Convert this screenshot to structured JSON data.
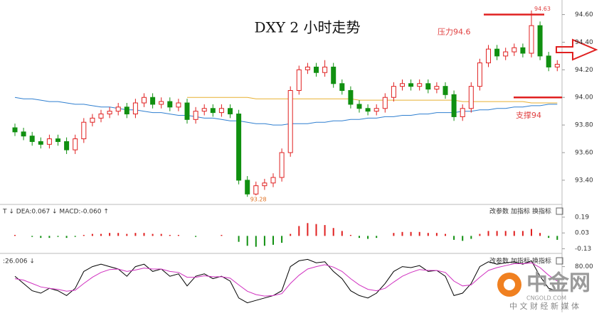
{
  "chart_data": [
    {
      "type": "candlestick",
      "title": "DXY 2 小时走势",
      "open": [
        93.78,
        93.75,
        93.72,
        93.68,
        93.66,
        93.7,
        93.68,
        93.62,
        93.7,
        93.82,
        93.85,
        93.88,
        93.9,
        93.93,
        93.88,
        93.96,
        94.0,
        93.95,
        93.97,
        93.93,
        93.96,
        93.84,
        93.9,
        93.92,
        93.89,
        93.92,
        93.88,
        93.4,
        93.3,
        93.36,
        93.38,
        93.42,
        93.6,
        94.05,
        94.2,
        94.22,
        94.18,
        94.22,
        94.1,
        94.05,
        93.95,
        93.92,
        93.9,
        93.92,
        94.0,
        94.08,
        94.1,
        94.08,
        94.1,
        94.06,
        94.08,
        94.02,
        93.86,
        93.92,
        94.08,
        94.25,
        94.35,
        94.3,
        94.33,
        94.36,
        94.32,
        94.52,
        94.3,
        94.22
      ],
      "high": [
        93.81,
        93.78,
        93.75,
        93.71,
        93.73,
        93.73,
        93.71,
        93.73,
        93.85,
        93.88,
        93.91,
        93.93,
        93.96,
        93.96,
        93.99,
        94.03,
        94.03,
        94.0,
        94.0,
        93.99,
        93.99,
        93.93,
        93.95,
        93.95,
        93.95,
        93.95,
        93.91,
        93.43,
        93.39,
        93.41,
        93.45,
        93.63,
        94.08,
        94.23,
        94.25,
        94.25,
        94.27,
        94.25,
        94.13,
        94.08,
        93.98,
        93.95,
        93.95,
        94.03,
        94.11,
        94.13,
        94.13,
        94.13,
        94.13,
        94.11,
        94.11,
        94.05,
        93.95,
        94.11,
        94.28,
        94.38,
        94.38,
        94.36,
        94.39,
        94.39,
        94.63,
        94.55,
        94.33,
        94.27
      ],
      "low": [
        93.72,
        93.69,
        93.65,
        93.63,
        93.63,
        93.65,
        93.59,
        93.59,
        93.67,
        93.79,
        93.82,
        93.85,
        93.87,
        93.85,
        93.85,
        93.93,
        93.92,
        93.92,
        93.9,
        93.9,
        93.81,
        93.81,
        93.87,
        93.86,
        93.86,
        93.85,
        93.37,
        93.28,
        93.29,
        93.33,
        93.35,
        93.39,
        93.57,
        94.02,
        94.17,
        94.15,
        94.15,
        94.07,
        94.02,
        93.92,
        93.89,
        93.87,
        93.87,
        93.89,
        93.97,
        94.05,
        94.05,
        94.05,
        94.03,
        94.03,
        93.99,
        93.83,
        93.83,
        93.89,
        94.05,
        94.22,
        94.27,
        94.27,
        94.3,
        94.29,
        94.29,
        94.27,
        94.19,
        94.19
      ],
      "close": [
        93.75,
        93.72,
        93.68,
        93.66,
        93.7,
        93.68,
        93.62,
        93.7,
        93.82,
        93.85,
        93.88,
        93.9,
        93.93,
        93.88,
        93.96,
        94.0,
        93.95,
        93.97,
        93.93,
        93.96,
        93.84,
        93.9,
        93.92,
        93.89,
        93.92,
        93.88,
        93.4,
        93.3,
        93.36,
        93.38,
        93.42,
        93.6,
        94.05,
        94.2,
        94.22,
        94.18,
        94.22,
        94.1,
        94.05,
        93.95,
        93.92,
        93.9,
        93.92,
        94.0,
        94.08,
        94.1,
        94.08,
        94.1,
        94.06,
        94.08,
        94.02,
        93.86,
        93.92,
        94.08,
        94.25,
        94.35,
        94.3,
        94.33,
        94.36,
        94.32,
        94.52,
        94.3,
        94.22,
        94.24
      ],
      "up_color": "#e02020",
      "down_color": "#109010",
      "series": [
        {
          "color": "#2f7fd0",
          "values": [
            94.0,
            93.99,
            93.99,
            93.98,
            93.97,
            93.97,
            93.96,
            93.95,
            93.95,
            93.94,
            93.93,
            93.93,
            93.92,
            93.91,
            93.91,
            93.9,
            93.89,
            93.89,
            93.88,
            93.87,
            93.87,
            93.86,
            93.85,
            93.85,
            93.84,
            93.83,
            93.83,
            93.82,
            93.81,
            93.81,
            93.8,
            93.8,
            93.81,
            93.81,
            93.81,
            93.82,
            93.82,
            93.83,
            93.83,
            93.84,
            93.84,
            93.85,
            93.85,
            93.86,
            93.86,
            93.87,
            93.87,
            93.88,
            93.88,
            93.89,
            93.89,
            93.89,
            93.9,
            93.9,
            93.91,
            93.91,
            93.92,
            93.92,
            93.93,
            93.93,
            93.94,
            93.94,
            93.95,
            93.95
          ]
        },
        {
          "color": "#e8b030",
          "values": [
            null,
            null,
            null,
            null,
            null,
            null,
            null,
            null,
            null,
            null,
            null,
            null,
            null,
            null,
            null,
            null,
            null,
            null,
            null,
            null,
            94.0,
            94.0,
            94.0,
            94.0,
            94.0,
            94.0,
            94.0,
            94.0,
            93.99,
            93.99,
            93.99,
            93.99,
            93.99,
            93.99,
            93.99,
            93.99,
            93.99,
            93.99,
            93.99,
            93.99,
            93.98,
            93.98,
            93.98,
            93.98,
            93.98,
            93.98,
            93.98,
            93.98,
            93.98,
            93.98,
            93.98,
            93.98,
            93.97,
            93.97,
            93.97,
            93.97,
            93.97,
            93.97,
            93.97,
            93.97,
            93.96,
            93.96,
            93.96,
            93.96
          ]
        }
      ],
      "ylim": [
        93.24,
        94.68
      ],
      "yticks": [
        {
          "value": 94.6,
          "label": "94.60"
        },
        {
          "value": 94.4,
          "label": "94.40"
        },
        {
          "value": 94.2,
          "label": "94.20"
        },
        {
          "value": 94.0,
          "label": "94.00"
        },
        {
          "value": 93.8,
          "label": "93.80"
        },
        {
          "value": 93.6,
          "label": "93.60"
        },
        {
          "value": 93.4,
          "label": "93.40"
        }
      ],
      "levels": [
        {
          "label": "压力94.6",
          "value": 94.6
        },
        {
          "label": "支撑94",
          "value": 94
        }
      ],
      "annotations": [
        {
          "text": "94.63",
          "index": 60
        },
        {
          "text": "93.28",
          "index": 27
        }
      ]
    },
    {
      "type": "bar",
      "title": "T ↓ DEA:0.067 ↓ MACD:-0.060 ↑",
      "buttons": [
        "改参数",
        "加指标",
        "换指标"
      ],
      "values": [
        0.01,
        0.0,
        -0.01,
        -0.02,
        -0.02,
        -0.01,
        -0.02,
        -0.01,
        0.01,
        0.02,
        0.02,
        0.03,
        0.03,
        0.02,
        0.03,
        0.03,
        0.02,
        0.02,
        0.01,
        0.01,
        0.0,
        -0.01,
        0.0,
        0.0,
        0.01,
        0.0,
        -0.06,
        -0.1,
        -0.11,
        -0.1,
        -0.09,
        -0.07,
        0.02,
        0.1,
        0.13,
        0.12,
        0.11,
        0.08,
        0.05,
        0.01,
        -0.02,
        -0.03,
        -0.02,
        0.0,
        0.03,
        0.04,
        0.04,
        0.04,
        0.03,
        0.03,
        0.02,
        -0.04,
        -0.05,
        -0.03,
        0.02,
        0.05,
        0.05,
        0.05,
        0.05,
        0.05,
        0.07,
        0.03,
        -0.02,
        -0.04
      ],
      "up_color": "#e02020",
      "down_color": "#109010",
      "ylim": [
        -0.17,
        0.29
      ],
      "yticks": [
        0.19,
        0.03,
        -0.13
      ]
    },
    {
      "type": "line",
      "title": ":26.006 ↓",
      "buttons": [
        "改参数",
        "加指标",
        "换指标"
      ],
      "series": [
        {
          "color": "#000000",
          "values": [
            60,
            45,
            30,
            25,
            35,
            30,
            20,
            35,
            70,
            80,
            85,
            80,
            75,
            60,
            80,
            85,
            70,
            75,
            60,
            65,
            40,
            60,
            65,
            55,
            60,
            50,
            15,
            5,
            10,
            15,
            20,
            30,
            80,
            92,
            95,
            88,
            90,
            70,
            55,
            30,
            20,
            15,
            25,
            45,
            70,
            80,
            78,
            82,
            70,
            72,
            60,
            20,
            25,
            45,
            80,
            90,
            85,
            88,
            90,
            85,
            92,
            60,
            35,
            30
          ]
        },
        {
          "color": "#d030c0",
          "values": [
            55,
            52,
            45,
            38,
            35,
            33,
            29,
            31,
            45,
            58,
            68,
            74,
            75,
            70,
            73,
            77,
            75,
            75,
            70,
            68,
            58,
            58,
            61,
            59,
            59,
            56,
            42,
            29,
            22,
            19,
            20,
            24,
            45,
            62,
            75,
            80,
            84,
            79,
            70,
            55,
            42,
            33,
            30,
            35,
            48,
            60,
            68,
            74,
            72,
            72,
            68,
            50,
            40,
            42,
            58,
            72,
            78,
            82,
            86,
            86,
            88,
            78,
            62,
            50
          ]
        }
      ],
      "ylim": [
        0,
        100
      ],
      "yticks": [
        {
          "value": 80,
          "label": "80.00"
        }
      ]
    }
  ],
  "watermark": {
    "brand": "中金网",
    "site": "CNGOLD.COM",
    "slogan": "中 文 财 经 新 媒 体"
  }
}
